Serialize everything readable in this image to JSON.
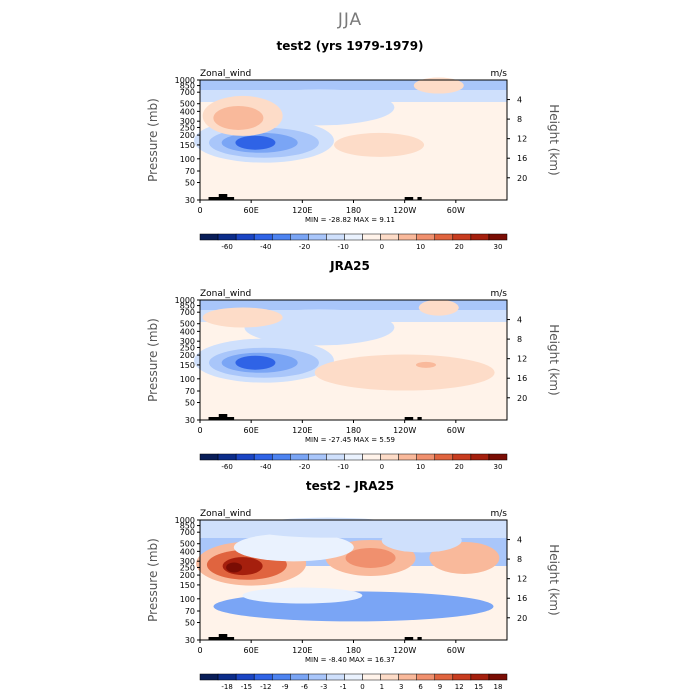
{
  "title": "JJA",
  "axes_labels": {
    "ylabel": "Pressure (mb)",
    "y2label": "Height (km)",
    "pressure_ticks": [
      "30",
      "50",
      "70",
      "100",
      "150",
      "200",
      "250",
      "300",
      "400",
      "500",
      "700",
      "850",
      "1000"
    ],
    "height_ticks": [
      "20",
      "16",
      "12",
      "8",
      "4"
    ],
    "lon_ticks": [
      "0",
      "60E",
      "120E",
      "180",
      "120W",
      "60W"
    ]
  },
  "panels": [
    {
      "title": "test2 (yrs 1979-1979)",
      "variable": "Zonal_wind",
      "units": "m/s",
      "stats": "MIN = -28.82   MAX =   9.11",
      "colorbar": {
        "labels": [
          "-60",
          "-40",
          "-20",
          "-10",
          "0",
          "10",
          "20",
          "30"
        ],
        "colors": [
          "#081d58",
          "#0b2c8a",
          "#1a45c4",
          "#2f63e6",
          "#4d83f0",
          "#7aa5f5",
          "#a9c6fa",
          "#cfe0fc",
          "#eaf2fe",
          "#fff3ea",
          "#fddcc8",
          "#f9b99b",
          "#f0906e",
          "#e0643f",
          "#c83c1f",
          "#a51f0d",
          "#7a0d04"
        ]
      }
    },
    {
      "title": "JRA25",
      "variable": "Zonal_wind",
      "units": "m/s",
      "stats": "MIN = -27.45   MAX =   5.59",
      "colorbar": {
        "labels": [
          "-60",
          "-40",
          "-20",
          "-10",
          "0",
          "10",
          "20",
          "30"
        ],
        "colors": [
          "#081d58",
          "#0b2c8a",
          "#1a45c4",
          "#2f63e6",
          "#4d83f0",
          "#7aa5f5",
          "#a9c6fa",
          "#cfe0fc",
          "#eaf2fe",
          "#fff3ea",
          "#fddcc8",
          "#f9b99b",
          "#f0906e",
          "#e0643f",
          "#c83c1f",
          "#a51f0d",
          "#7a0d04"
        ]
      }
    },
    {
      "title": "test2 - JRA25",
      "variable": "Zonal_wind",
      "units": "m/s",
      "stats": "MIN = -8.40   MAX =  16.37",
      "colorbar": {
        "labels": [
          "-18",
          "-15",
          "-12",
          "-9",
          "-6",
          "-3",
          "-1",
          "0",
          "1",
          "3",
          "6",
          "9",
          "12",
          "15",
          "18"
        ],
        "colors": [
          "#081d58",
          "#0b2c8a",
          "#1a45c4",
          "#2f63e6",
          "#4d83f0",
          "#7aa5f5",
          "#a9c6fa",
          "#cfe0fc",
          "#eaf2fe",
          "#fff3ea",
          "#fddcc8",
          "#f9b99b",
          "#f0906e",
          "#e0643f",
          "#c83c1f",
          "#a51f0d",
          "#7a0d04"
        ]
      }
    }
  ],
  "chart_data": [
    {
      "type": "heatmap",
      "title": "test2 (yrs 1979-1979)",
      "x": [
        0,
        60,
        120,
        180,
        240,
        300
      ],
      "xlim": [
        0,
        360
      ],
      "y_pressure_ticks": [
        30,
        50,
        70,
        100,
        150,
        200,
        250,
        300,
        400,
        500,
        700,
        850,
        1000
      ],
      "ylim": [
        1000,
        30
      ],
      "min": -28.82,
      "max": 9.11,
      "features": [
        {
          "kind": "jet_min",
          "lon": 70,
          "pressure": 150,
          "value": -28
        },
        {
          "kind": "positive_blob",
          "lon": 50,
          "pressure": 350,
          "value": 8
        },
        {
          "kind": "positive_band",
          "lon": 200,
          "pressure": 150,
          "value": 3
        }
      ]
    },
    {
      "type": "heatmap",
      "title": "JRA25",
      "x": [
        0,
        60,
        120,
        180,
        240,
        300
      ],
      "xlim": [
        0,
        360
      ],
      "y_pressure_ticks": [
        30,
        50,
        70,
        100,
        150,
        200,
        250,
        300,
        400,
        500,
        700,
        850,
        1000
      ],
      "ylim": [
        1000,
        30
      ],
      "min": -27.45,
      "max": 5.59,
      "features": [
        {
          "kind": "jet_min",
          "lon": 70,
          "pressure": 170,
          "value": -27
        },
        {
          "kind": "positive_band",
          "lon": 240,
          "pressure": 150,
          "value": 5
        }
      ]
    },
    {
      "type": "heatmap",
      "title": "test2 - JRA25",
      "x": [
        0,
        60,
        120,
        180,
        240,
        300
      ],
      "xlim": [
        0,
        360
      ],
      "y_pressure_ticks": [
        30,
        50,
        70,
        100,
        150,
        200,
        250,
        300,
        400,
        500,
        700,
        850,
        1000
      ],
      "ylim": [
        1000,
        30
      ],
      "min": -8.4,
      "max": 16.37,
      "features": [
        {
          "kind": "positive_max",
          "lon": 60,
          "pressure": 280,
          "value": 16
        },
        {
          "kind": "negative_band",
          "lon": 180,
          "pressure": 60,
          "value": -6
        },
        {
          "kind": "positive_blob",
          "lon": 200,
          "pressure": 350,
          "value": 6
        }
      ]
    }
  ]
}
